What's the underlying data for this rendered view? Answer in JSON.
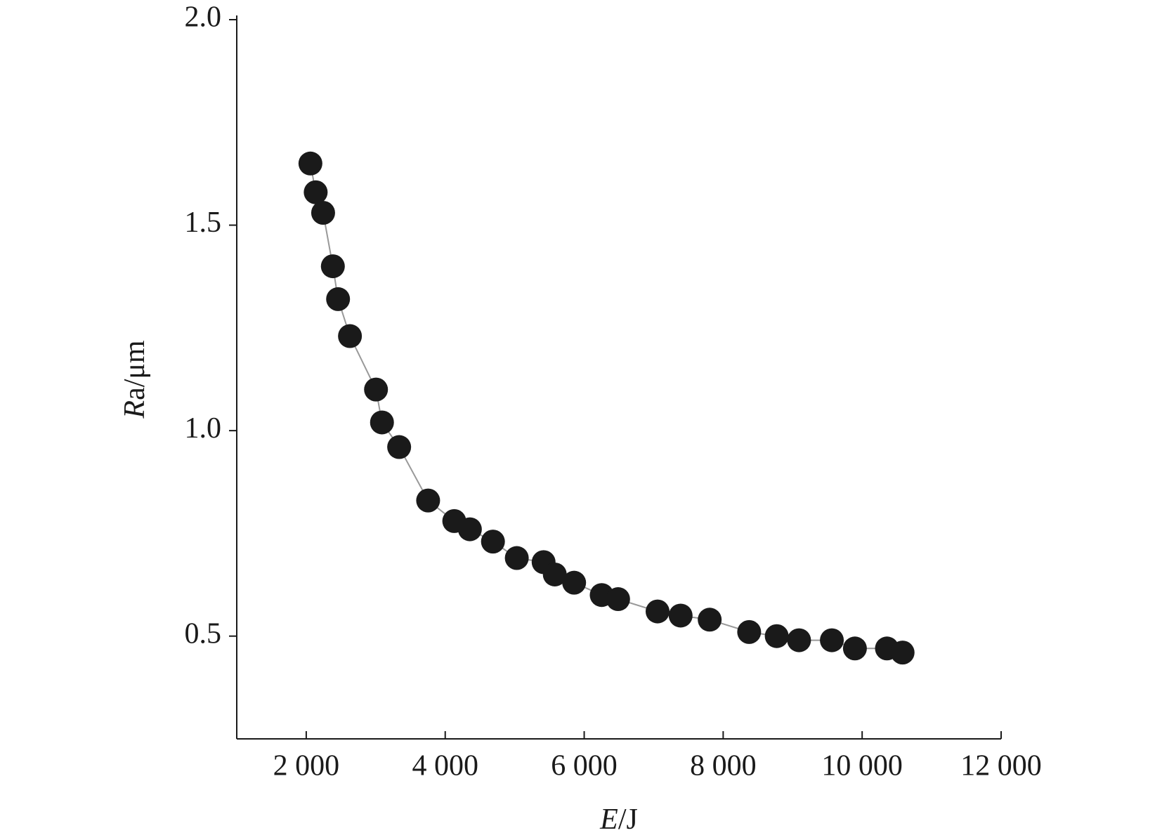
{
  "chart_data": {
    "type": "line",
    "x_label": "E/J",
    "y_label": "Ra/μm",
    "series": [
      {
        "color": "#1a1a1a",
        "line_color": "#999999",
        "x": [
          2060,
          2136,
          2243,
          2383,
          2458,
          2629,
          3004,
          3090,
          3337,
          3754,
          4130,
          4355,
          4687,
          5030,
          5416,
          5577,
          5855,
          6252,
          6488,
          7056,
          7388,
          7806,
          8374,
          8771,
          9092,
          9564,
          9896,
          10357,
          10582
        ],
        "values": [
          1.65,
          1.58,
          1.53,
          1.4,
          1.32,
          1.23,
          1.1,
          1.02,
          0.96,
          0.83,
          0.78,
          0.76,
          0.73,
          0.69,
          0.68,
          0.65,
          0.63,
          0.6,
          0.59,
          0.56,
          0.55,
          0.54,
          0.51,
          0.5,
          0.49,
          0.49,
          0.47,
          0.47,
          0.46
        ]
      }
    ],
    "xlim": [
      1000,
      12000
    ],
    "xticks": [
      {
        "value": 2000,
        "label": "2 000"
      },
      {
        "value": 4000,
        "label": "4 000"
      },
      {
        "value": 6000,
        "label": "6 000"
      },
      {
        "value": 8000,
        "label": "8 000"
      },
      {
        "value": 10000,
        "label": "10 000"
      },
      {
        "value": 12000,
        "label": "12 000"
      }
    ],
    "ylim": [
      0.25,
      2.0
    ],
    "yticks": [
      {
        "value": 0.5,
        "label": "0.5"
      },
      {
        "value": 1.0,
        "label": "1.0"
      },
      {
        "value": 1.5,
        "label": "1.5"
      },
      {
        "value": 2.0,
        "label": "2.0"
      }
    ]
  }
}
